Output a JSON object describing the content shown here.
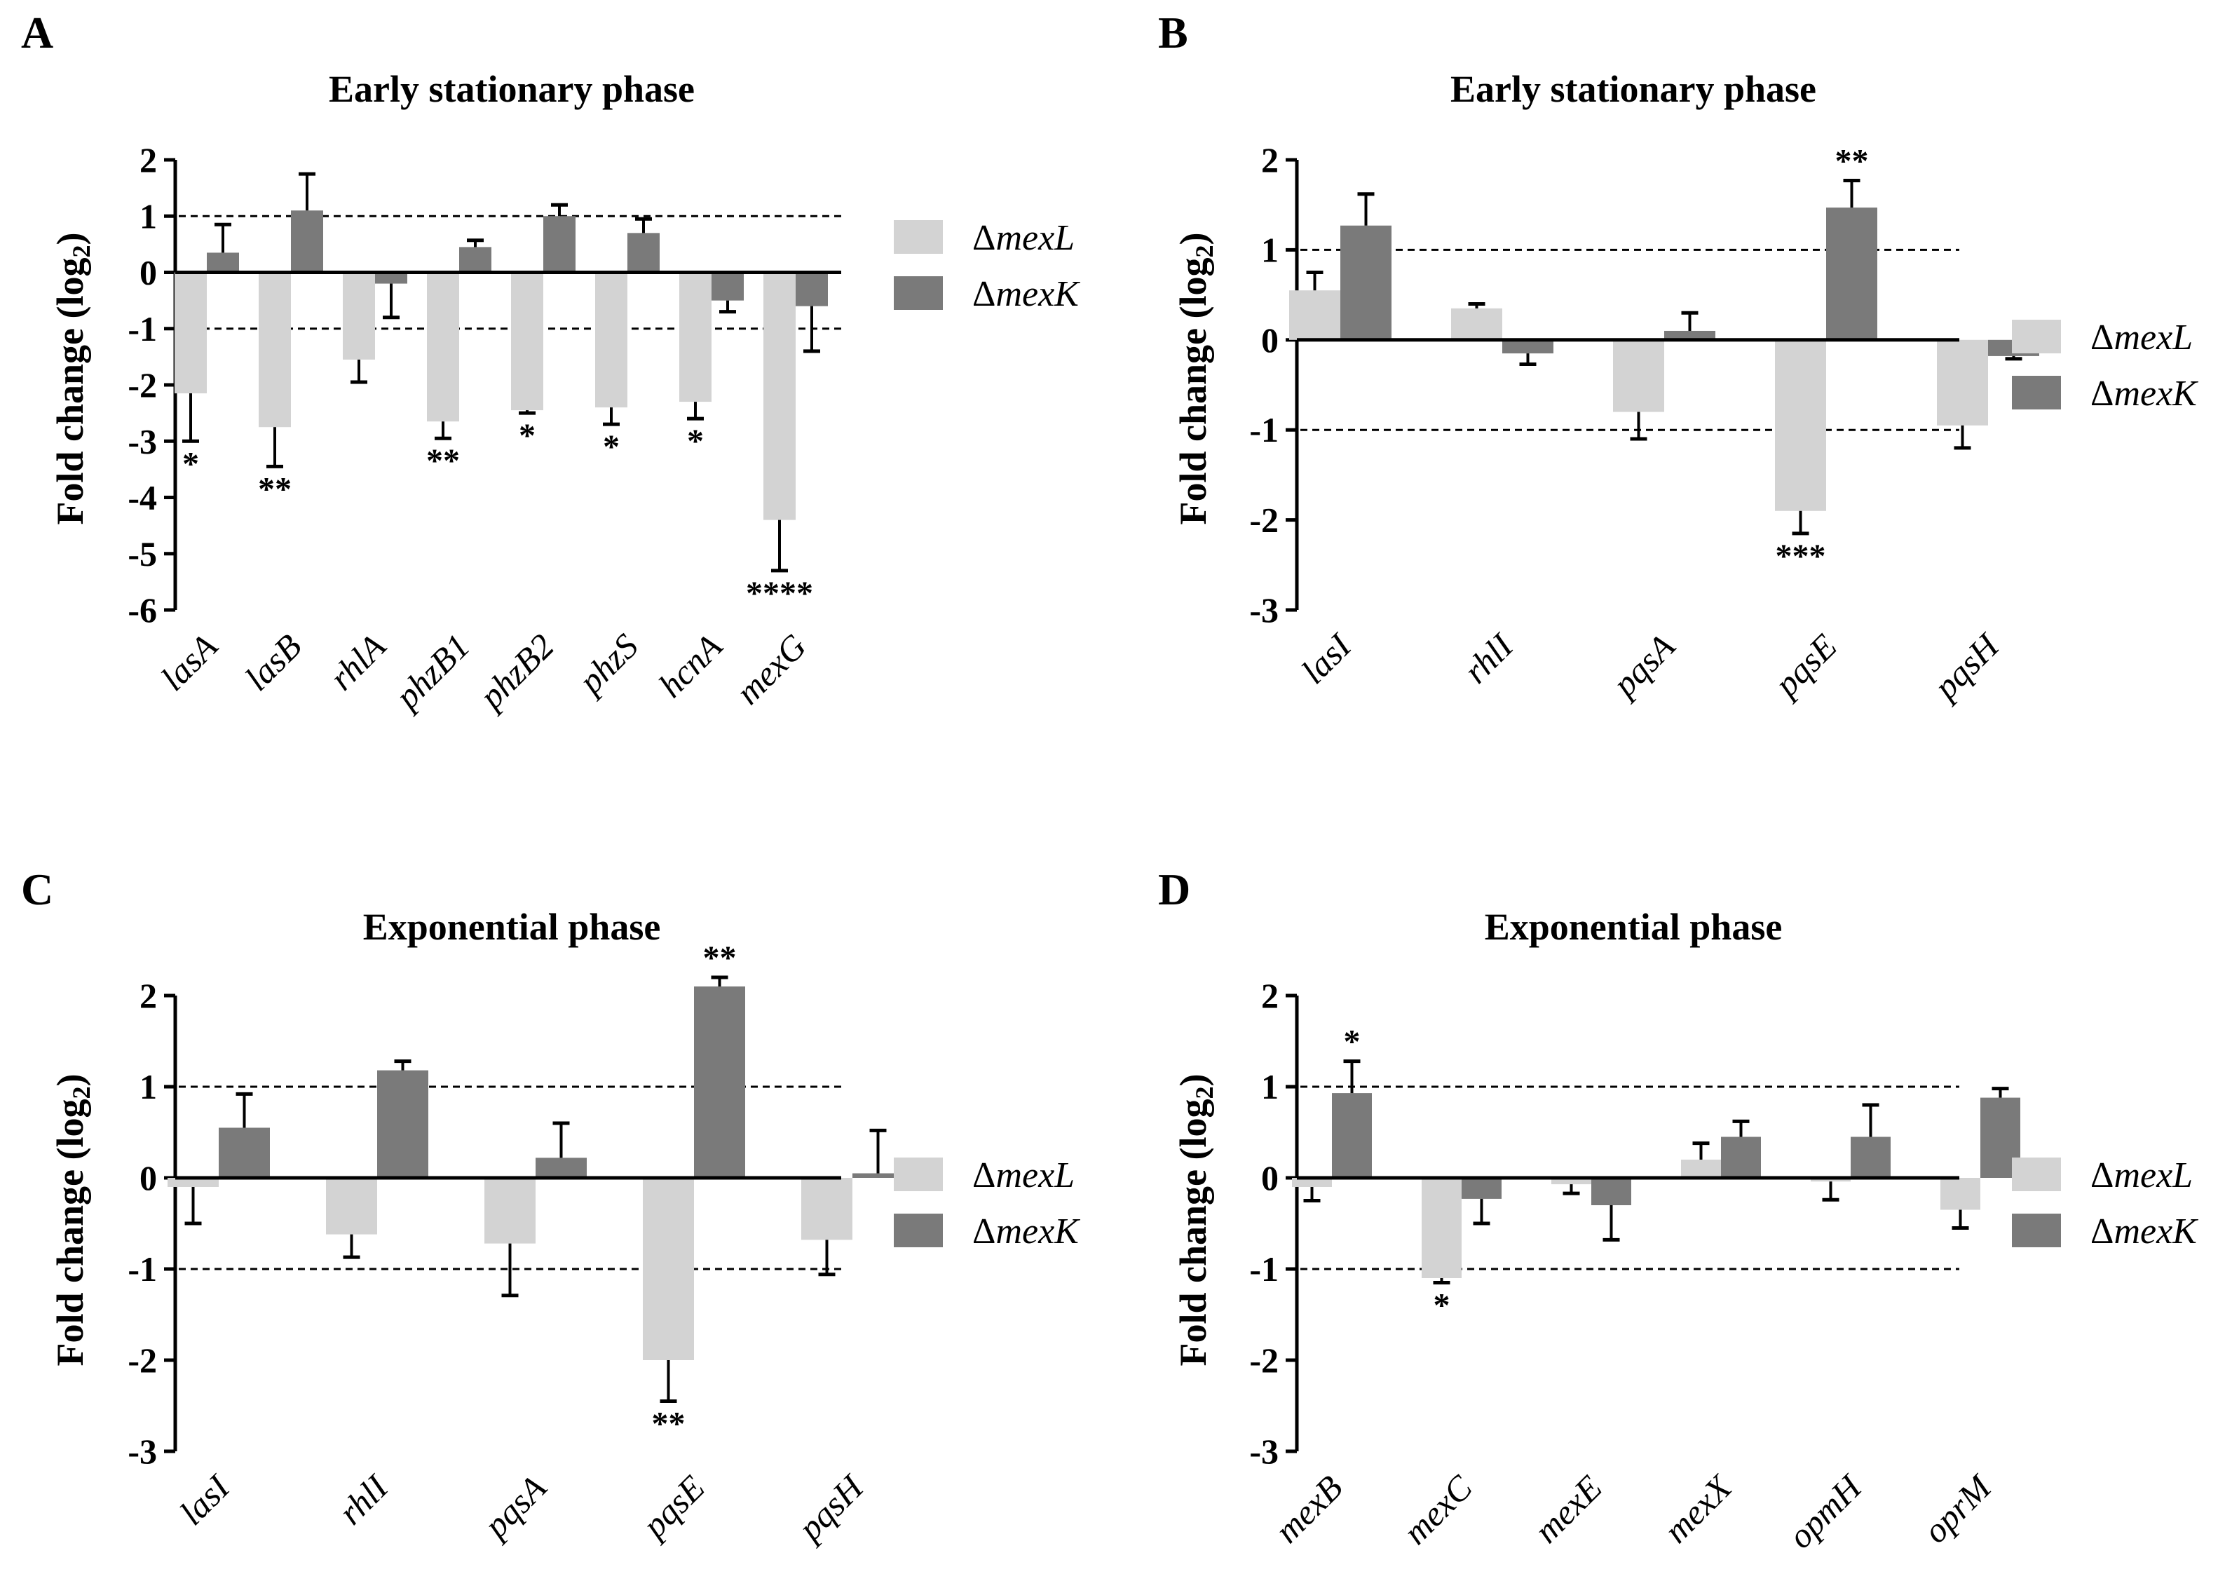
{
  "colors": {
    "mexL": "#d3d3d3",
    "mexK": "#7a7a7a",
    "axis": "#000000"
  },
  "legend": [
    "ΔmexL",
    "ΔmexK"
  ],
  "ylabel": "Fold change (log2)",
  "chart_data": [
    {
      "panel": "A",
      "type": "bar",
      "title": "Early stationary phase",
      "xlabel": "",
      "ylabel": "Fold change (log2)",
      "ylim": [
        -6,
        2
      ],
      "yticks": [
        "2",
        "1",
        "0",
        "-1",
        "-2",
        "-3",
        "-4",
        "-5",
        "-6"
      ],
      "threshold_lines": [
        1,
        -1
      ],
      "legend_position": "right",
      "categories": [
        "lasA",
        "lasB",
        "rhlA",
        "phzB1",
        "phzB2",
        "phzS",
        "hcnA",
        "mexG"
      ],
      "series": [
        {
          "name": "ΔmexL",
          "values": [
            -2.15,
            -2.75,
            -1.55,
            -2.65,
            -2.45,
            -2.4,
            -2.3,
            -4.4
          ],
          "errors": [
            0.85,
            0.7,
            0.4,
            0.3,
            0.05,
            0.3,
            0.3,
            0.9
          ],
          "significance": [
            "*",
            "**",
            "",
            "**",
            "*",
            "*",
            "*",
            "****"
          ]
        },
        {
          "name": "ΔmexK",
          "values": [
            0.35,
            1.1,
            -0.2,
            0.45,
            1.0,
            0.7,
            -0.5,
            -0.6
          ],
          "errors": [
            0.5,
            0.65,
            0.6,
            0.12,
            0.2,
            0.25,
            0.2,
            0.8
          ],
          "significance": [
            "",
            "",
            "",
            "",
            "",
            "",
            "",
            ""
          ]
        }
      ]
    },
    {
      "panel": "B",
      "type": "bar",
      "title": "Early stationary phase",
      "xlabel": "",
      "ylabel": "Fold change (log2)",
      "ylim": [
        -3,
        2
      ],
      "yticks": [
        "2",
        "1",
        "0",
        "-1",
        "-2",
        "-3"
      ],
      "threshold_lines": [
        1,
        -1
      ],
      "legend_position": "right",
      "categories": [
        "lasI",
        "rhlI",
        "pqsA",
        "pqsE",
        "pqsH"
      ],
      "series": [
        {
          "name": "ΔmexL",
          "values": [
            0.55,
            0.35,
            -0.8,
            -1.9,
            -0.95
          ],
          "errors": [
            0.2,
            0.05,
            0.3,
            0.25,
            0.25
          ],
          "significance": [
            "",
            "",
            "",
            "***",
            ""
          ]
        },
        {
          "name": "ΔmexK",
          "values": [
            1.27,
            -0.15,
            0.1,
            1.47,
            -0.18
          ],
          "errors": [
            0.35,
            0.12,
            0.2,
            0.3,
            0.03
          ],
          "significance": [
            "",
            "",
            "",
            "**",
            ""
          ]
        }
      ]
    },
    {
      "panel": "C",
      "type": "bar",
      "title": "Exponential phase",
      "xlabel": "",
      "ylabel": "Fold change (log2)",
      "ylim": [
        -3,
        2
      ],
      "yticks": [
        "2",
        "1",
        "0",
        "-1",
        "-2",
        "-3"
      ],
      "threshold_lines": [
        1,
        -1
      ],
      "legend_position": "right",
      "categories": [
        "lasI",
        "rhlI",
        "pqsA",
        "pqsE",
        "pqsH"
      ],
      "series": [
        {
          "name": "ΔmexL",
          "values": [
            -0.1,
            -0.62,
            -0.72,
            -2.0,
            -0.68
          ],
          "errors": [
            0.4,
            0.25,
            0.57,
            0.45,
            0.38
          ],
          "significance": [
            "",
            "",
            "",
            "**",
            ""
          ]
        },
        {
          "name": "ΔmexK",
          "values": [
            0.55,
            1.18,
            0.22,
            2.1,
            0.05
          ],
          "errors": [
            0.37,
            0.1,
            0.38,
            0.1,
            0.47
          ],
          "significance": [
            "",
            "",
            "",
            "**",
            ""
          ]
        }
      ]
    },
    {
      "panel": "D",
      "type": "bar",
      "title": "Exponential phase",
      "xlabel": "",
      "ylabel": "Fold change (log2)",
      "ylim": [
        -3,
        2
      ],
      "yticks": [
        "2",
        "1",
        "0",
        "-1",
        "-2",
        "-3"
      ],
      "threshold_lines": [
        1,
        -1
      ],
      "legend_position": "right",
      "categories": [
        "mexB",
        "mexC",
        "mexE",
        "mexX",
        "opmH",
        "oprM"
      ],
      "series": [
        {
          "name": "ΔmexL",
          "values": [
            -0.1,
            -1.1,
            -0.07,
            0.2,
            -0.04,
            -0.35
          ],
          "errors": [
            0.15,
            0.05,
            0.1,
            0.18,
            0.2,
            0.2
          ],
          "significance": [
            "",
            "*",
            "",
            "",
            "",
            ""
          ]
        },
        {
          "name": "ΔmexK",
          "values": [
            0.93,
            -0.23,
            -0.3,
            0.45,
            0.45,
            0.88
          ],
          "errors": [
            0.35,
            0.27,
            0.38,
            0.17,
            0.35,
            0.1
          ],
          "significance": [
            "*",
            "",
            "",
            "",
            "",
            ""
          ]
        }
      ]
    }
  ]
}
